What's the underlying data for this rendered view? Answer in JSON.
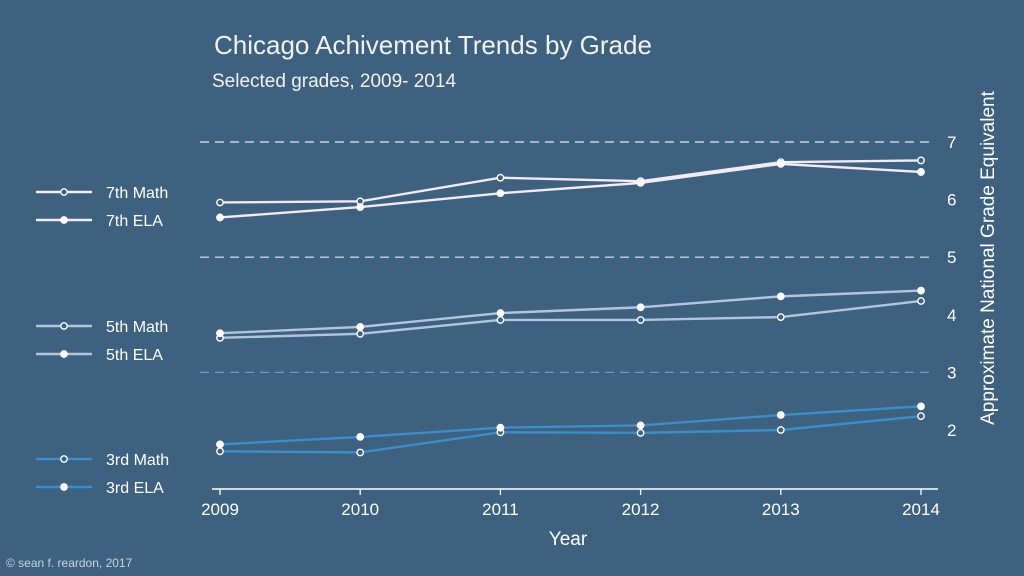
{
  "title": "Chicago Achivement Trends by Grade",
  "subtitle": "Selected grades, 2009- 2014",
  "copyright": "© sean f. reardon, 2017",
  "colors": {
    "background": "#3d617e",
    "grade7": "#f2eaf5",
    "grade5": "#b3c4df",
    "grade3": "#3a8ec9"
  },
  "chart_data": {
    "type": "line",
    "x": [
      2009,
      2010,
      2011,
      2012,
      2013,
      2014
    ],
    "xlabel": "Year",
    "ylabel": "Approximate National Grade Equivalent",
    "ylim": [
      1,
      7
    ],
    "yticks": [
      2,
      3,
      4,
      5,
      6,
      7
    ],
    "grid": "dashed reference lines at 3, 5, 7",
    "legend": "left",
    "series": [
      {
        "name": "7th Math",
        "marker": "open",
        "color": "#f2eaf5",
        "values": [
          5.95,
          5.97,
          6.38,
          6.32,
          6.65,
          6.68
        ]
      },
      {
        "name": "7th ELA",
        "marker": "filled",
        "color": "#f2eaf5",
        "values": [
          5.69,
          5.87,
          6.11,
          6.29,
          6.62,
          6.48
        ]
      },
      {
        "name": "5th Math",
        "marker": "open",
        "color": "#b3c4df",
        "values": [
          3.6,
          3.67,
          3.91,
          3.91,
          3.96,
          4.24
        ]
      },
      {
        "name": "5th ELA",
        "marker": "filled",
        "color": "#b3c4df",
        "values": [
          3.68,
          3.79,
          4.03,
          4.13,
          4.32,
          4.42
        ]
      },
      {
        "name": "3rd Math",
        "marker": "open",
        "color": "#3a8ec9",
        "values": [
          1.63,
          1.61,
          1.96,
          1.95,
          2.0,
          2.24
        ]
      },
      {
        "name": "3rd ELA",
        "marker": "filled",
        "color": "#3a8ec9",
        "values": [
          1.75,
          1.88,
          2.04,
          2.08,
          2.26,
          2.41
        ]
      }
    ]
  }
}
